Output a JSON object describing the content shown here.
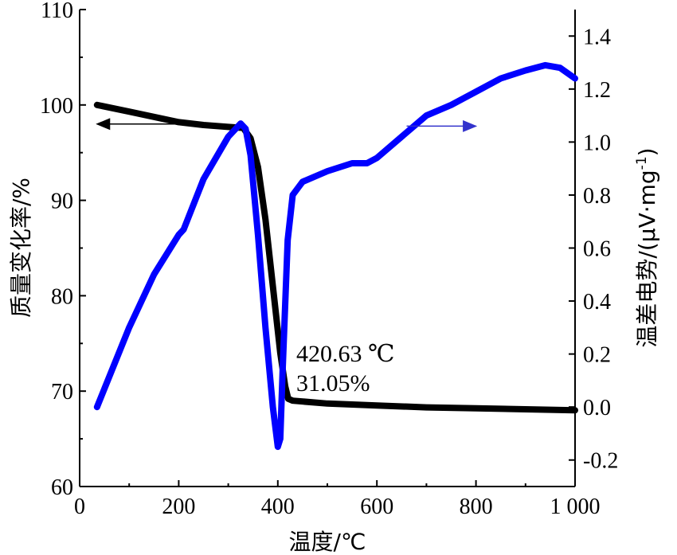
{
  "chart_data": {
    "type": "line",
    "xlabel": "温度/℃",
    "ylabel_left": "质量变化率/%",
    "ylabel_right_prefix": "温差电势/(μV·mg",
    "ylabel_right_sup": "-1",
    "ylabel_right_suffix": ")",
    "xlim": [
      0,
      1000
    ],
    "ylim_left": [
      60,
      110
    ],
    "ylim_right": [
      -0.3,
      1.5
    ],
    "x_ticks": [
      0,
      200,
      400,
      600,
      800,
      1000
    ],
    "x_tick_labels": [
      "0",
      "200",
      "400",
      "600",
      "800",
      "1 000"
    ],
    "y_left_ticks": [
      60,
      70,
      80,
      90,
      100,
      110
    ],
    "y_left_tick_labels": [
      "60",
      "70",
      "80",
      "90",
      "100",
      "110"
    ],
    "y_right_ticks": [
      -0.2,
      0.0,
      0.2,
      0.4,
      0.6,
      0.8,
      1.0,
      1.2,
      1.4
    ],
    "y_right_tick_labels": [
      "-0.2",
      "0.0",
      "0.2",
      "0.4",
      "0.6",
      "0.8",
      "1.0",
      "1.2",
      "1.4"
    ],
    "grid": false,
    "series": [
      {
        "axis": "left",
        "color": "#000000",
        "x": [
          35,
          100,
          200,
          250,
          300,
          330,
          345,
          360,
          375,
          390,
          405,
          415,
          421,
          430,
          500,
          600,
          700,
          800,
          900,
          1000
        ],
        "y": [
          100,
          99.3,
          98.2,
          97.9,
          97.7,
          97.6,
          96.5,
          93.5,
          88,
          81,
          74,
          70.5,
          69.2,
          69,
          68.7,
          68.5,
          68.3,
          68.2,
          68.1,
          68
        ]
      },
      {
        "axis": "right",
        "color": "#0000ff",
        "x": [
          35,
          100,
          150,
          200,
          210,
          250,
          300,
          325,
          335,
          345,
          360,
          375,
          390,
          400,
          405,
          410,
          420,
          430,
          450,
          500,
          550,
          580,
          600,
          650,
          700,
          750,
          800,
          850,
          900,
          940,
          970,
          1000
        ],
        "y": [
          0.0,
          0.3,
          0.5,
          0.65,
          0.67,
          0.86,
          1.02,
          1.07,
          1.05,
          0.95,
          0.65,
          0.3,
          0.0,
          -0.15,
          -0.12,
          0.15,
          0.63,
          0.8,
          0.85,
          0.89,
          0.92,
          0.92,
          0.94,
          1.02,
          1.1,
          1.14,
          1.19,
          1.24,
          1.27,
          1.29,
          1.28,
          1.24
        ]
      }
    ],
    "annotations": [
      {
        "line1": "420.63 ℃",
        "line2": "31.05%"
      }
    ],
    "arrows": [
      {
        "series": "left",
        "direction": "left",
        "color": "#000000",
        "x_from": 230,
        "x_to": 35,
        "y": 98
      },
      {
        "series": "right",
        "direction": "right",
        "color": "#3333cc",
        "x_from": 660,
        "x_to": 800,
        "y_right": 1.06
      }
    ]
  }
}
